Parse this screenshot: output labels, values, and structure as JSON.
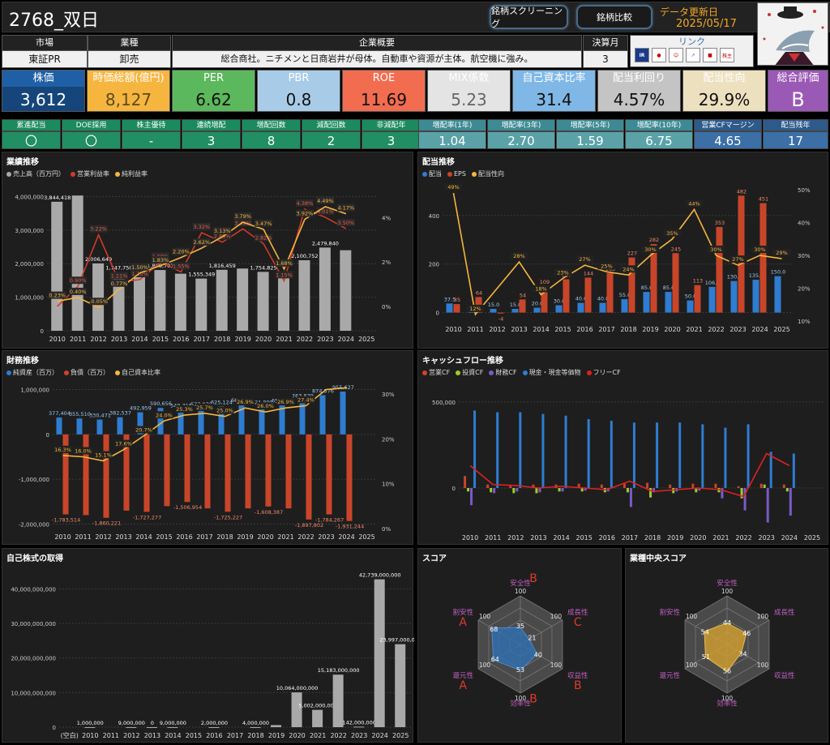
{
  "header": {
    "title": "2768_双日",
    "btn_screening": "銘柄スクリーニング",
    "btn_compare": "銘柄比較",
    "update_label": "データ更新日",
    "update_date": "2025/05/17"
  },
  "info": {
    "market_h": "市場",
    "market_v": "東証PR",
    "industry_h": "業種",
    "industry_v": "卸売",
    "overview_h": "企業概要",
    "overview_v": "総合商社。ニチメンと日商岩井が母体。自動車や資源が主体。航空機に強み。",
    "fiscal_h": "決算月",
    "fiscal_v": "3",
    "link_h": "リンク",
    "links": [
      "IR BANK",
      "kabutan",
      "chart",
      "nikkei",
      "kabutan-chart",
      "株主優待"
    ]
  },
  "kpis": [
    {
      "label": "株価",
      "value": "3,612",
      "bg": "#1f5fa6",
      "fg": "#ffffff"
    },
    {
      "label": "時価総額(億円)",
      "value": "8,127",
      "bg": "#f5b53f",
      "fg": "#5a4a20"
    },
    {
      "label": "PER",
      "value": "6.62",
      "bg": "#5cb85c",
      "fg": "#111111"
    },
    {
      "label": "PBR",
      "value": "0.8",
      "bg": "#a8cce8",
      "fg": "#111111"
    },
    {
      "label": "ROE",
      "value": "11.69",
      "bg": "#f26d50",
      "fg": "#111111"
    },
    {
      "label": "MIX係数",
      "value": "5.23",
      "bg": "#e4e4e4",
      "fg": "#666666"
    },
    {
      "label": "自己資本比率",
      "value": "31.4",
      "bg": "#7fb8e6",
      "fg": "#111111"
    },
    {
      "label": "配当利回り",
      "value": "4.57%",
      "bg": "#c4c4c4",
      "fg": "#111111"
    },
    {
      "label": "配当性向",
      "value": "29.9%",
      "bg": "#ede0bf",
      "fg": "#111111"
    },
    {
      "label": "総合評価",
      "value": "B",
      "bg": "#9b59b6",
      "fg": "#ffffff"
    }
  ],
  "metrics_left": [
    {
      "label": "累進配当",
      "value": "〇"
    },
    {
      "label": "DOE採用",
      "value": "〇"
    },
    {
      "label": "株主優待",
      "value": "-"
    },
    {
      "label": "連続増配",
      "value": "3"
    },
    {
      "label": "増配回数",
      "value": "8"
    },
    {
      "label": "減配回数",
      "value": "2"
    },
    {
      "label": "非減配年",
      "value": "3"
    }
  ],
  "metrics_right": [
    {
      "label": "増配率(1年)",
      "value": "1.04"
    },
    {
      "label": "増配率(3年)",
      "value": "2.70"
    },
    {
      "label": "増配率(5年)",
      "value": "1.59"
    },
    {
      "label": "増配率(10年)",
      "value": "6.75"
    },
    {
      "label": "営業CFマージン",
      "value": "4.65"
    },
    {
      "label": "配当残年",
      "value": "17"
    }
  ],
  "colors": {
    "green_head": "#1b8a5e",
    "green_val": "#218e64",
    "teal_head": "#3e8a94",
    "teal_val": "#5aa2a8",
    "blue_head": "#2d5a8a",
    "blue_val": "#3b6fa6"
  },
  "chart_data": [
    {
      "id": "gyoseki",
      "type": "bar",
      "title": "業績推移",
      "legend": [
        "売上高（百万円）",
        "営業利益率",
        "純利益率"
      ],
      "categories": [
        "2010",
        "2011",
        "2012",
        "2013",
        "2014",
        "2015",
        "2016",
        "2017",
        "2018",
        "2019",
        "2020",
        "2021",
        "2022",
        "2023",
        "2024",
        "2025"
      ],
      "y_ticks": [
        "0",
        "1,000,000",
        "2,000,000",
        "3,000,000",
        "4,000,000"
      ],
      "y2_ticks": [
        "0%",
        "2%",
        "4%"
      ],
      "ylim": [
        0,
        4300000
      ],
      "y2lim": [
        -1.1,
        5.4
      ],
      "series": [
        {
          "name": "売上高（百万円）",
          "values": [
            3844418,
            4030000,
            2006649,
            1747750,
            1800000,
            1809701,
            1700000,
            1555349,
            1816459,
            1854000,
            1754825,
            1602485,
            2100752,
            2479840,
            2400000,
            null
          ],
          "labels": [
            "3,844,418",
            "",
            "2,006,649",
            "1,747,750",
            "",
            "1,809,701",
            "",
            "1,555,349",
            "1,816,459",
            "",
            "1,754,825",
            "",
            "2,100,752",
            "2,479,840",
            "",
            ""
          ]
        },
        {
          "name": "営業利益率",
          "values": [
            0.0,
            0.9,
            3.22,
            1.11,
            1.2,
            1.99,
            1.55,
            3.32,
            2.89,
            3.49,
            2.82,
            1.15,
            4.38,
            4.01,
            3.5,
            null
          ]
        },
        {
          "name": "純利益率",
          "values": [
            0.23,
            0.4,
            -0.05,
            0.77,
            1.5,
            1.83,
            2.2,
            2.62,
            3.13,
            3.79,
            3.47,
            1.68,
            3.92,
            4.49,
            4.17,
            null
          ]
        }
      ]
    },
    {
      "id": "haito",
      "type": "bar",
      "title": "配当推移",
      "legend": [
        "配当",
        "EPS",
        "配当性向"
      ],
      "categories": [
        "2010",
        "2011",
        "2012",
        "2013",
        "2014",
        "2015",
        "2016",
        "2017",
        "2018",
        "2019",
        "2020",
        "2021",
        "2022",
        "2023",
        "2024",
        "2025"
      ],
      "y_ticks": [
        "0",
        "200",
        "400"
      ],
      "y2_ticks": [
        "10%",
        "20%",
        "30%",
        "40%",
        "50%"
      ],
      "ylim": [
        -35,
        520
      ],
      "y2lim": [
        10,
        51
      ],
      "series": [
        {
          "name": "配当",
          "values": [
            37.5,
            4,
            15.0,
            15.0,
            20.0,
            30.0,
            40.0,
            40.0,
            55.0,
            85.0,
            85.0,
            50.0,
            106.0,
            130.0,
            135.0,
            150.0
          ]
        },
        {
          "name": "EPS",
          "values": [
            35,
            64,
            -4,
            54,
            109,
            137,
            144,
            163,
            227,
            282,
            245,
            113,
            353,
            482,
            451,
            null
          ]
        },
        {
          "name": "配当性向",
          "values": [
            49,
            12,
            null,
            28,
            18,
            23,
            27,
            25,
            24,
            30,
            35,
            44,
            30,
            27,
            30,
            29
          ]
        }
      ]
    },
    {
      "id": "zaimu",
      "type": "bar",
      "title": "財務推移",
      "legend": [
        "純資産（百万）",
        "負債（百万）",
        "自己資本比率"
      ],
      "categories": [
        "2010",
        "2011",
        "2012",
        "2013",
        "2014",
        "2015",
        "2016",
        "2017",
        "2018",
        "2019",
        "2020",
        "2021",
        "2022",
        "2023",
        "2024",
        "2025"
      ],
      "y_ticks": [
        "-2,000,000",
        "-1,000,000",
        "0",
        "1,000,000"
      ],
      "y2_ticks": [
        "0%",
        "10%",
        "20%",
        "30%"
      ],
      "ylim": [
        -2100000,
        1100000
      ],
      "y2lim": [
        0,
        32
      ],
      "series": [
        {
          "name": "純資産（百万）",
          "values": [
            377404,
            355510,
            330471,
            382537,
            492959,
            590656,
            549716,
            577970,
            625124,
            661607,
            621898,
            654639,
            763879,
            874576,
            955627,
            null
          ]
        },
        {
          "name": "負債（百万）",
          "values": [
            -1783514,
            -1800000,
            -1860221,
            -1700000,
            -1727277,
            -1600000,
            -1506954,
            -1650000,
            -1725227,
            -1650000,
            -1608387,
            -1650000,
            -1897802,
            -1784267,
            -1931244,
            null
          ]
        },
        {
          "name": "自己資本比率",
          "values": [
            16.3,
            16.0,
            15.1,
            17.6,
            20.7,
            24.0,
            25.3,
            25.7,
            25.0,
            26.9,
            26.0,
            26.9,
            27.4,
            31.0,
            31.4,
            null
          ]
        }
      ]
    },
    {
      "id": "cf",
      "type": "bar",
      "title": "キャッシュフロー推移",
      "legend": [
        "営業CF",
        "投資CF",
        "財務CF",
        "現金・現金等価物",
        "フリーCF"
      ],
      "categories": [
        "2010",
        "2011",
        "2012",
        "2013",
        "2014",
        "2015",
        "2016",
        "2017",
        "2018",
        "2019",
        "2020",
        "2021",
        "2022",
        "2023",
        "2024",
        "2025"
      ],
      "y_ticks": [
        "0",
        "500,000"
      ],
      "ylim": [
        -240000,
        560000
      ],
      "series": [
        {
          "name": "営業CF",
          "values": [
            70000,
            20000,
            15000,
            20000,
            20000,
            25000,
            20000,
            25000,
            30000,
            20000,
            25000,
            25000,
            10000,
            25000,
            20000,
            null
          ]
        },
        {
          "name": "投資CF",
          "values": [
            -20000,
            -25000,
            -30000,
            -30000,
            -20000,
            -20000,
            -25000,
            -25000,
            -55000,
            -30000,
            -25000,
            -25000,
            -60000,
            20000,
            -20000,
            null
          ]
        },
        {
          "name": "財務CF",
          "values": [
            -100000,
            -30000,
            -20000,
            -25000,
            -20000,
            -15000,
            -20000,
            -110000,
            -25000,
            -20000,
            -15000,
            -60000,
            -130000,
            -200000,
            -160000,
            null
          ]
        },
        {
          "name": "現金・現金等価物",
          "values": [
            450000,
            440000,
            440000,
            430000,
            420000,
            400000,
            390000,
            380000,
            380000,
            380000,
            370000,
            350000,
            370000,
            210000,
            200000,
            null
          ]
        },
        {
          "name": "フリーCF",
          "values": [
            130000,
            20000,
            15000,
            0,
            10000,
            0,
            -10000,
            40000,
            -20000,
            -10000,
            0,
            -10000,
            -50000,
            200000,
            130000,
            null
          ]
        }
      ]
    },
    {
      "id": "buyback",
      "type": "bar",
      "title": "自己株式の取得",
      "categories": [
        "(空白)",
        "2010",
        "2011",
        "2012",
        "2013",
        "2014",
        "2015",
        "2016",
        "2017",
        "2018",
        "2019",
        "2020",
        "2021",
        "2022",
        "2023",
        "2024",
        "2025"
      ],
      "y_ticks": [
        "0",
        "10,000,000,000",
        "20,000,000,000",
        "30,000,000,000",
        "40,000,000,000"
      ],
      "ylim": [
        0,
        45000000000
      ],
      "series": [
        {
          "name": "自己株式の取得",
          "values": [
            null,
            1000000,
            null,
            9000000,
            0,
            9000000,
            null,
            2000000,
            null,
            4000000,
            600000000,
            10064000000,
            5002000000,
            15183000000,
            142000000,
            42739000000,
            23997000000
          ],
          "labels": [
            "",
            "1,000,000",
            "",
            "9,000,000",
            "0",
            "9,000,000",
            "",
            "2,000,000",
            "",
            "4,000,000",
            "",
            "10,064,000,000",
            "5,002,000,000",
            "15,183,000,000",
            "142,000,000",
            "42,739,000,000",
            "23,997,000,000"
          ]
        }
      ]
    },
    {
      "id": "score",
      "type": "radar",
      "title": "スコア",
      "axes": [
        "安全性",
        "成長性",
        "収益性",
        "効率性",
        "還元性",
        "割安性"
      ],
      "grades": [
        "B",
        "C",
        "B",
        "B",
        "A",
        "A"
      ],
      "max": 100,
      "values": [
        35,
        21,
        40,
        53,
        64,
        68
      ]
    },
    {
      "id": "industry_score",
      "type": "radar",
      "title": "業種中央スコア",
      "axes": [
        "安全性",
        "成長性",
        "収益性",
        "効率性",
        "還元性",
        "割安性"
      ],
      "max": 100,
      "values": [
        44,
        46,
        34,
        56,
        51,
        54
      ]
    }
  ]
}
